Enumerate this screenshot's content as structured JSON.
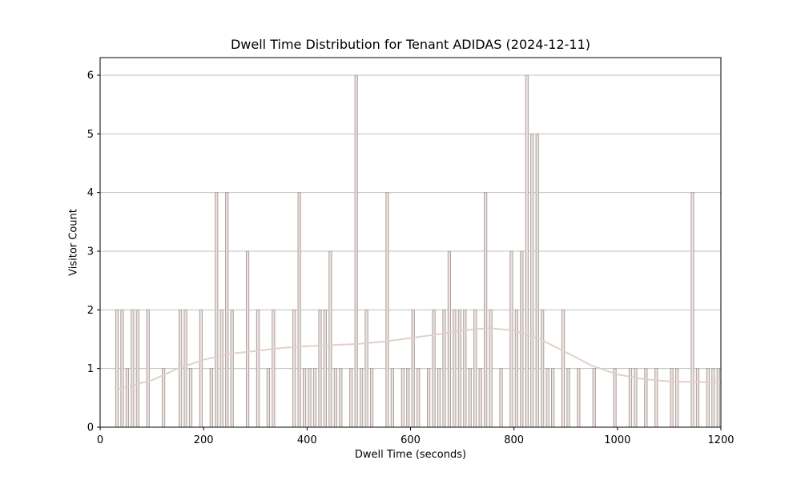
{
  "chart_data": {
    "type": "bar",
    "title": "Dwell Time Distribution for Tenant ADIDAS (2024-12-11)",
    "xlabel": "Dwell Time (seconds)",
    "ylabel": "Visitor Count",
    "xlim": [
      0,
      1200
    ],
    "ylim": [
      0,
      6.3
    ],
    "xticks": [
      0,
      200,
      400,
      600,
      800,
      1000,
      1200
    ],
    "yticks": [
      0,
      1,
      2,
      3,
      4,
      5,
      6
    ],
    "grid": "horizontal",
    "bin_width": 5,
    "bars": [
      {
        "x": 32.5,
        "count": 2
      },
      {
        "x": 42.5,
        "count": 2
      },
      {
        "x": 52.5,
        "count": 1
      },
      {
        "x": 62.5,
        "count": 2
      },
      {
        "x": 72.5,
        "count": 2
      },
      {
        "x": 92.5,
        "count": 2
      },
      {
        "x": 122.5,
        "count": 1
      },
      {
        "x": 155,
        "count": 2
      },
      {
        "x": 165,
        "count": 2
      },
      {
        "x": 175,
        "count": 1
      },
      {
        "x": 195,
        "count": 2
      },
      {
        "x": 215,
        "count": 1
      },
      {
        "x": 225,
        "count": 4
      },
      {
        "x": 235,
        "count": 2
      },
      {
        "x": 245,
        "count": 4
      },
      {
        "x": 255,
        "count": 2
      },
      {
        "x": 285,
        "count": 3
      },
      {
        "x": 305,
        "count": 2
      },
      {
        "x": 325,
        "count": 1
      },
      {
        "x": 335,
        "count": 2
      },
      {
        "x": 375,
        "count": 2
      },
      {
        "x": 385,
        "count": 4
      },
      {
        "x": 395,
        "count": 1
      },
      {
        "x": 405,
        "count": 1
      },
      {
        "x": 415,
        "count": 1
      },
      {
        "x": 425,
        "count": 2
      },
      {
        "x": 435,
        "count": 2
      },
      {
        "x": 445,
        "count": 3
      },
      {
        "x": 455,
        "count": 1
      },
      {
        "x": 465,
        "count": 1
      },
      {
        "x": 485,
        "count": 1
      },
      {
        "x": 495,
        "count": 6
      },
      {
        "x": 505,
        "count": 1
      },
      {
        "x": 515,
        "count": 2
      },
      {
        "x": 525,
        "count": 1
      },
      {
        "x": 555,
        "count": 4
      },
      {
        "x": 565,
        "count": 1
      },
      {
        "x": 585,
        "count": 1
      },
      {
        "x": 595,
        "count": 1
      },
      {
        "x": 605,
        "count": 2
      },
      {
        "x": 615,
        "count": 1
      },
      {
        "x": 635,
        "count": 1
      },
      {
        "x": 645,
        "count": 2
      },
      {
        "x": 655,
        "count": 1
      },
      {
        "x": 665,
        "count": 2
      },
      {
        "x": 675,
        "count": 3
      },
      {
        "x": 685,
        "count": 2
      },
      {
        "x": 695,
        "count": 2
      },
      {
        "x": 705,
        "count": 2
      },
      {
        "x": 715,
        "count": 1
      },
      {
        "x": 725,
        "count": 2
      },
      {
        "x": 735,
        "count": 1
      },
      {
        "x": 745,
        "count": 4
      },
      {
        "x": 755,
        "count": 2
      },
      {
        "x": 775,
        "count": 1
      },
      {
        "x": 795,
        "count": 3
      },
      {
        "x": 805,
        "count": 2
      },
      {
        "x": 815,
        "count": 3
      },
      {
        "x": 825,
        "count": 6
      },
      {
        "x": 835,
        "count": 5
      },
      {
        "x": 845,
        "count": 5
      },
      {
        "x": 855,
        "count": 2
      },
      {
        "x": 865,
        "count": 1
      },
      {
        "x": 875,
        "count": 1
      },
      {
        "x": 895,
        "count": 2
      },
      {
        "x": 905,
        "count": 1
      },
      {
        "x": 925,
        "count": 1
      },
      {
        "x": 955,
        "count": 1
      },
      {
        "x": 995,
        "count": 1
      },
      {
        "x": 1025,
        "count": 1
      },
      {
        "x": 1035,
        "count": 1
      },
      {
        "x": 1055,
        "count": 1
      },
      {
        "x": 1075,
        "count": 1
      },
      {
        "x": 1105,
        "count": 1
      },
      {
        "x": 1115,
        "count": 1
      },
      {
        "x": 1145,
        "count": 4
      },
      {
        "x": 1155,
        "count": 1
      },
      {
        "x": 1175,
        "count": 1
      },
      {
        "x": 1185,
        "count": 1
      },
      {
        "x": 1195,
        "count": 1
      }
    ],
    "kde": {
      "x": [
        35,
        100,
        150,
        200,
        250,
        300,
        350,
        400,
        450,
        500,
        550,
        600,
        650,
        700,
        750,
        800,
        850,
        900,
        950,
        1000,
        1050,
        1100,
        1150,
        1200
      ],
      "y": [
        0.65,
        0.8,
        1.0,
        1.15,
        1.25,
        1.3,
        1.35,
        1.38,
        1.4,
        1.42,
        1.46,
        1.52,
        1.58,
        1.65,
        1.69,
        1.65,
        1.5,
        1.28,
        1.05,
        0.9,
        0.82,
        0.78,
        0.77,
        0.76
      ]
    },
    "colors": {
      "bar_fill": "#efe2dd",
      "bar_edge": "#aaa2a0",
      "kde_line": "#e3d0c8",
      "grid": "#c0c0c0",
      "axis": "#000000"
    }
  }
}
